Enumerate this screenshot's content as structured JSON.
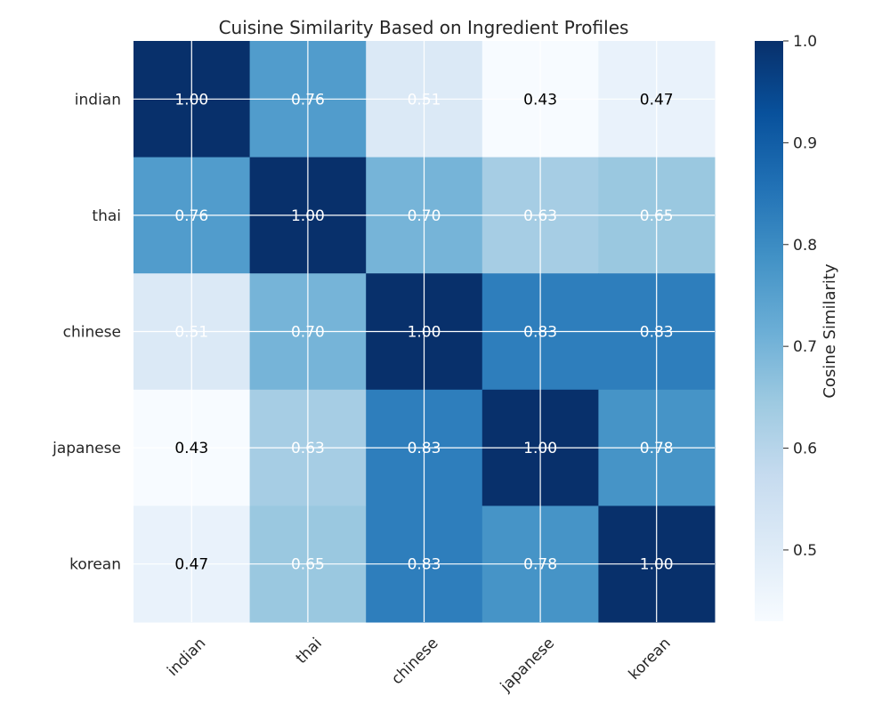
{
  "chart_data": {
    "type": "heatmap",
    "title": "Cuisine Similarity Based on Ingredient Profiles",
    "x_categories": [
      "indian",
      "thai",
      "chinese",
      "japanese",
      "korean"
    ],
    "y_categories": [
      "indian",
      "thai",
      "chinese",
      "japanese",
      "korean"
    ],
    "values": [
      [
        1.0,
        0.76,
        0.51,
        0.43,
        0.47
      ],
      [
        0.76,
        1.0,
        0.7,
        0.63,
        0.65
      ],
      [
        0.51,
        0.7,
        1.0,
        0.83,
        0.83
      ],
      [
        0.43,
        0.63,
        0.83,
        1.0,
        0.78
      ],
      [
        0.47,
        0.65,
        0.83,
        0.78,
        1.0
      ]
    ],
    "value_format": "0.00",
    "colormap": "Blues",
    "vmin": 0.43,
    "vmax": 1.0,
    "colorbar": {
      "label": "Cosine Similarity",
      "ticks": [
        0.5,
        0.6,
        0.7,
        0.8,
        0.9,
        1.0
      ],
      "tick_labels": [
        "0.5",
        "0.6",
        "0.7",
        "0.8",
        "0.9",
        "1.0"
      ]
    },
    "grid": true,
    "grid_color": "#ffffff",
    "low_label_color": "#000000",
    "high_label_color": "#ffffff",
    "x_tick_rotation": "45 degrees"
  }
}
